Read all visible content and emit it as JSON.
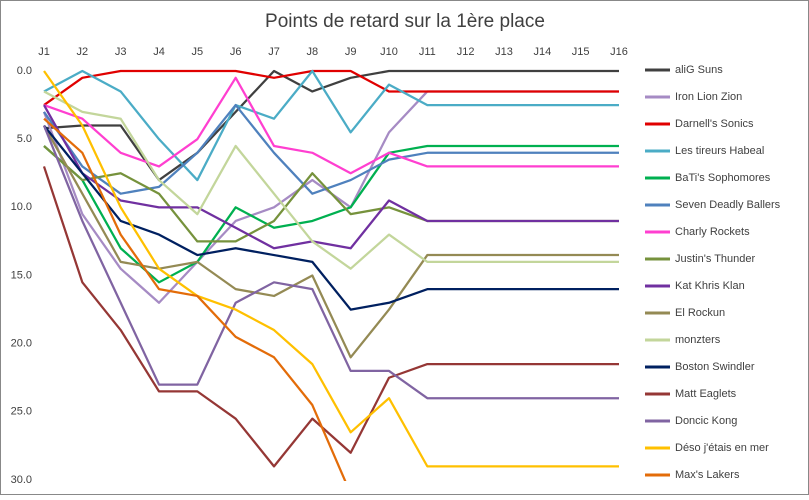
{
  "chart_data": {
    "type": "line",
    "title": "Points de retard sur la 1ère place",
    "categories": [
      "J1",
      "J2",
      "J3",
      "J4",
      "J5",
      "J6",
      "J7",
      "J8",
      "J9",
      "J10",
      "J11",
      "J12",
      "J13",
      "J14",
      "J15",
      "J16"
    ],
    "ylim": [
      0,
      30
    ],
    "y_inverted": true,
    "yticks": [
      {
        "value": 0,
        "label": "0.0"
      },
      {
        "value": 5,
        "label": "5.0"
      },
      {
        "value": 10,
        "label": "10.0"
      },
      {
        "value": 15,
        "label": "15.0"
      },
      {
        "value": 20,
        "label": "20.0"
      },
      {
        "value": 25,
        "label": "25.0"
      },
      {
        "value": 30,
        "label": "30.0"
      }
    ],
    "legend": "right",
    "series": [
      {
        "name": "aliG Suns",
        "color": "#404040",
        "values": [
          4.2,
          4,
          4,
          8,
          6,
          3,
          0,
          1.5,
          0.5,
          0,
          0,
          0,
          0,
          0,
          0,
          0
        ]
      },
      {
        "name": "Iron Lion Zion",
        "color": "#a68bc4",
        "values": [
          3,
          10.5,
          14.5,
          17,
          14,
          11,
          10,
          8,
          10,
          4.5,
          1.5,
          1.5,
          1.5,
          1.5,
          1.5,
          1.5
        ]
      },
      {
        "name": "Darnell's Sonics",
        "color": "#e00000",
        "values": [
          2.5,
          0.5,
          0,
          0,
          0,
          0,
          0.5,
          0,
          0,
          1.5,
          1.5,
          1.5,
          1.5,
          1.5,
          1.5,
          1.5
        ]
      },
      {
        "name": "Les tireurs Habeal",
        "color": "#4bacc6",
        "values": [
          1.5,
          0,
          1.5,
          5,
          8,
          2.5,
          3.5,
          0,
          4.5,
          1,
          2.5,
          2.5,
          2.5,
          2.5,
          2.5,
          2.5
        ]
      },
      {
        "name": "BaTi's Sophomores",
        "color": "#00b050",
        "values": [
          5.5,
          8,
          13,
          15.5,
          14,
          10,
          11.5,
          11,
          10,
          6,
          5.5,
          5.5,
          5.5,
          5.5,
          5.5,
          5.5
        ]
      },
      {
        "name": "Seven Deadly Ballers",
        "color": "#4f81bd",
        "values": [
          3,
          7,
          9,
          8.5,
          6,
          2.5,
          6,
          9,
          8,
          6.5,
          6,
          6,
          6,
          6,
          6,
          6
        ]
      },
      {
        "name": "Charly Rockets",
        "color": "#ff3fd0",
        "values": [
          2.5,
          3.5,
          6,
          7,
          5,
          0.5,
          5.5,
          6,
          7.5,
          6,
          7,
          7,
          7,
          7,
          7,
          7
        ]
      },
      {
        "name": "Justin's Thunder",
        "color": "#76923c",
        "values": [
          5.5,
          8,
          7.5,
          9,
          12.5,
          12.5,
          11,
          7.5,
          10.5,
          10,
          11,
          11,
          11,
          11,
          11,
          11
        ]
      },
      {
        "name": "Kat Khris Klan",
        "color": "#7030a0",
        "values": [
          2.5,
          7.5,
          9.5,
          10,
          10,
          11.5,
          13,
          12.5,
          13,
          9.5,
          11,
          11,
          11,
          11,
          11,
          11
        ]
      },
      {
        "name": "El Rockun",
        "color": "#948a54",
        "values": [
          4,
          9,
          14,
          14.5,
          14,
          16,
          16.5,
          15,
          21,
          17.5,
          13.5,
          13.5,
          13.5,
          13.5,
          13.5,
          13.5
        ]
      },
      {
        "name": "monzters",
        "color": "#c3d69b",
        "values": [
          1.5,
          3,
          3.5,
          8,
          10.5,
          5.5,
          9,
          12.5,
          14.5,
          12,
          14,
          14,
          14,
          14,
          14,
          14
        ]
      },
      {
        "name": "Boston Swindler",
        "color": "#002060",
        "values": [
          4,
          7.5,
          11,
          12,
          13.5,
          13,
          13.5,
          14,
          17.5,
          17,
          16,
          16,
          16,
          16,
          16,
          16
        ]
      },
      {
        "name": "Matt Eaglets",
        "color": "#953735",
        "values": [
          7,
          15.5,
          19,
          23.5,
          23.5,
          25.5,
          29,
          25.5,
          28,
          22.5,
          21.5,
          21.5,
          21.5,
          21.5,
          21.5,
          21.5
        ]
      },
      {
        "name": "Doncic Kong",
        "color": "#8064a2",
        "values": [
          4,
          11,
          17,
          23,
          23,
          17,
          15.5,
          16,
          22,
          22,
          24,
          24,
          24,
          24,
          24,
          24
        ]
      },
      {
        "name": "Déso j'étais en mer",
        "color": "#ffc000",
        "values": [
          0,
          4,
          10,
          14.5,
          16.5,
          17.5,
          19,
          21.5,
          26.5,
          24,
          29,
          29,
          29,
          29,
          29,
          29
        ]
      },
      {
        "name": "Max's Lakers",
        "color": "#e36c09",
        "values": [
          3.5,
          6,
          12,
          16,
          16.5,
          19.5,
          21,
          24.5,
          31,
          null,
          null,
          null,
          null,
          null,
          null,
          null
        ]
      }
    ]
  }
}
